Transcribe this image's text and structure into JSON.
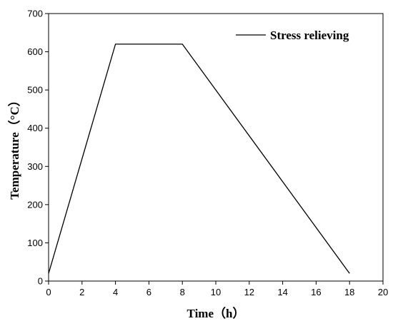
{
  "chart_data": {
    "type": "line",
    "title": "",
    "xlabel": "Time（h）",
    "ylabel": "Temperature（°C）",
    "xlim": [
      0,
      20
    ],
    "ylim": [
      0,
      700
    ],
    "x_ticks": [
      0,
      2,
      4,
      6,
      8,
      10,
      12,
      14,
      16,
      18,
      20
    ],
    "y_ticks": [
      0,
      100,
      200,
      300,
      400,
      500,
      600,
      700
    ],
    "grid": false,
    "legend_position": "top-right",
    "series": [
      {
        "name": "Stress relieving",
        "color": "#000000",
        "points": [
          {
            "x": 0,
            "y": 20
          },
          {
            "x": 4,
            "y": 620
          },
          {
            "x": 8,
            "y": 620
          },
          {
            "x": 18,
            "y": 20
          }
        ]
      }
    ]
  }
}
